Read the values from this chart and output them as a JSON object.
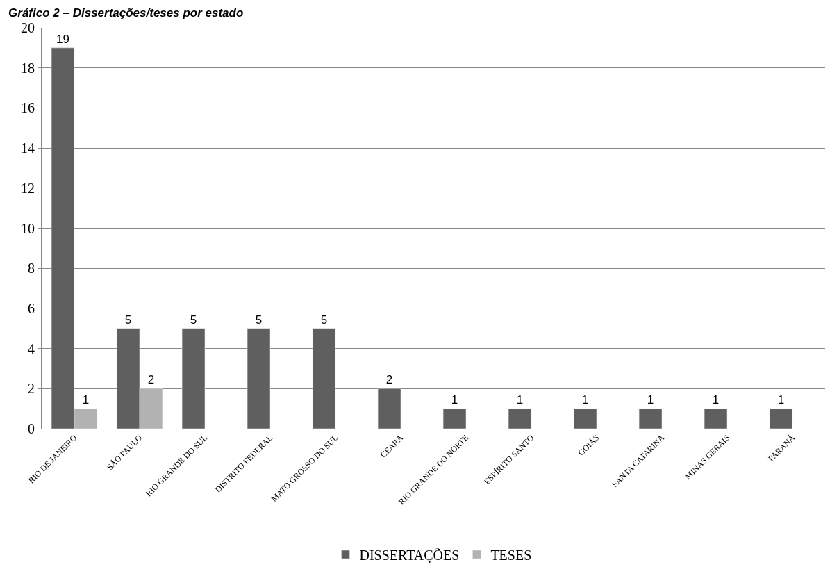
{
  "chart_data": {
    "type": "bar",
    "title": "Gráfico 2 – Dissertações/teses por estado",
    "categories": [
      "RIO DE JANEIRO",
      "SÃO PAULO",
      "RIO GRANDE DO SUL",
      "DISTRITO FEDERAL",
      "MATO GROSSO DO SUL",
      "CEARÁ",
      "RIO GRANDE DO NORTE",
      "ESPÍRITO SANTO",
      "GOIÁS",
      "SANTA CATARINA",
      "MINAS GERAIS",
      "PARANÁ"
    ],
    "series": [
      {
        "name": "DISSERTAÇÕES",
        "color": "#5f5f5f",
        "values": [
          19,
          5,
          5,
          5,
          5,
          2,
          1,
          1,
          1,
          1,
          1,
          1
        ],
        "value_labels": [
          "19",
          "5",
          "5",
          "5",
          "5",
          "2",
          "1",
          "1",
          "1",
          "1",
          "1",
          "1"
        ]
      },
      {
        "name": "TESES",
        "color": "#b2b2b2",
        "values": [
          1,
          2,
          null,
          null,
          null,
          null,
          null,
          null,
          null,
          null,
          null,
          null
        ],
        "value_labels": [
          "1",
          "2",
          null,
          null,
          null,
          null,
          null,
          null,
          null,
          null,
          null,
          null
        ]
      }
    ],
    "ylim": [
      0,
      20
    ],
    "yticks": [
      0,
      2,
      4,
      6,
      8,
      10,
      12,
      14,
      16,
      18,
      20
    ],
    "grid": "y",
    "legend": "bottom"
  }
}
